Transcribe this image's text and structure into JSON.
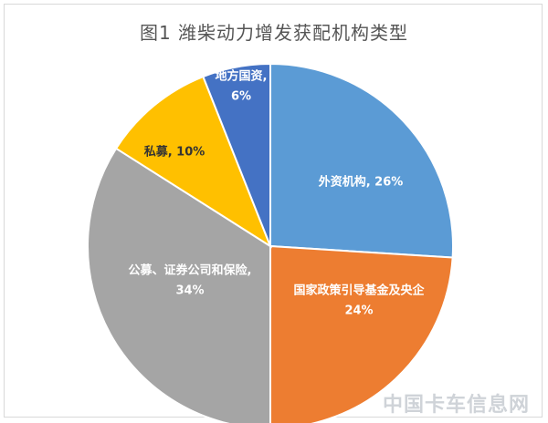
{
  "chart_data": {
    "type": "pie",
    "title": "图1  潍柴动力增发获配机构类型",
    "slices": [
      {
        "label": "外资机构, 26%",
        "name": "外资机构",
        "value": 26,
        "color": "#5b9bd5",
        "text_color": "#ffffff"
      },
      {
        "label": "国家政策引导基金及央企",
        "label2": "24%",
        "name": "国家政策引导基金及央企",
        "value": 24,
        "color": "#ed7d31",
        "text_color": "#ffffff"
      },
      {
        "label": "公募、证券公司和保险,",
        "label2": "34%",
        "name": "公募、证券公司和保险",
        "value": 34,
        "color": "#a5a5a5",
        "text_color": "#ffffff"
      },
      {
        "label": "私募, 10%",
        "name": "私募",
        "value": 10,
        "color": "#ffc000",
        "text_color": "#333333"
      },
      {
        "label": "地方国资,",
        "label2": "6%",
        "name": "地方国资",
        "value": 6,
        "color": "#4472c4",
        "text_color": "#ffffff"
      }
    ]
  },
  "watermark": "中国卡车信息网"
}
